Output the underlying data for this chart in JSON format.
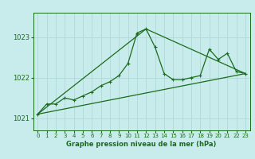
{
  "title": "Graphe pression niveau de la mer (hPa)",
  "bg_color": "#c8ecec",
  "grid_color": "#b0d8d8",
  "line_color": "#1a6b1a",
  "xlim": [
    -0.5,
    23.5
  ],
  "ylim": [
    1020.7,
    1023.6
  ],
  "yticks": [
    1021,
    1022,
    1023
  ],
  "xticks": [
    0,
    1,
    2,
    3,
    4,
    5,
    6,
    7,
    8,
    9,
    10,
    11,
    12,
    13,
    14,
    15,
    16,
    17,
    18,
    19,
    20,
    21,
    22,
    23
  ],
  "series1_x": [
    0,
    1,
    2,
    3,
    4,
    5,
    6,
    7,
    8,
    9,
    10,
    11,
    12,
    13,
    14,
    15,
    16,
    17,
    18,
    19,
    20,
    21,
    22,
    23
  ],
  "series1_y": [
    1021.1,
    1021.35,
    1021.35,
    1021.5,
    1021.45,
    1021.55,
    1021.65,
    1021.8,
    1021.9,
    1022.05,
    1022.35,
    1023.1,
    1023.2,
    1022.75,
    1022.1,
    1021.95,
    1021.95,
    1022.0,
    1022.05,
    1022.7,
    1022.45,
    1022.6,
    1022.15,
    1022.1
  ],
  "series2_x": [
    0,
    23
  ],
  "series2_y": [
    1021.1,
    1022.1
  ],
  "series3_x": [
    0,
    12,
    23
  ],
  "series3_y": [
    1021.1,
    1023.2,
    1022.1
  ]
}
